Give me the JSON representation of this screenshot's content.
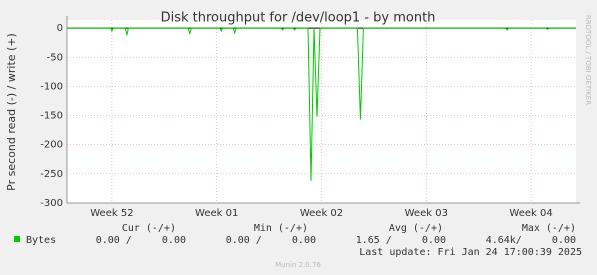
{
  "chart_data": {
    "type": "line",
    "title": "Disk throughput for /dev/loop1 - by month",
    "y_label": "Pr second read (-) / write (+)",
    "x": [
      0,
      2.9,
      3.0,
      3.1,
      3.9,
      4.0,
      4.1,
      8.1,
      8.2,
      8.3,
      10.2,
      10.3,
      10.4,
      11.1,
      11.2,
      11.3,
      14.3,
      14.4,
      14.5,
      15.1,
      15.2,
      15.3,
      16.1,
      16.3,
      16.5,
      16.7,
      16.9,
      19.4,
      19.6,
      19.8,
      29.3,
      29.4,
      29.5,
      32.0,
      32.1,
      32.2,
      34
    ],
    "series": [
      {
        "name": "Bytes",
        "color": "#00cc00",
        "values": [
          0,
          0,
          -5,
          0,
          0,
          -12,
          0,
          0,
          -10,
          0,
          0,
          -5,
          0,
          0,
          -8,
          0,
          0,
          -3,
          0,
          0,
          -3,
          0,
          0,
          -262,
          0,
          -152,
          0,
          0,
          -157,
          0,
          0,
          -3,
          0,
          0,
          -2,
          0,
          0
        ]
      }
    ],
    "xlim": [
      0,
      34
    ],
    "xticks": [
      {
        "value": 3,
        "label": "Week 52"
      },
      {
        "value": 10,
        "label": "Week 01"
      },
      {
        "value": 17,
        "label": "Week 02"
      },
      {
        "value": 24,
        "label": "Week 03"
      },
      {
        "value": 31,
        "label": "Week 04"
      }
    ],
    "ylim": [
      -300,
      14
    ],
    "yticks": [
      -300,
      -250,
      -200,
      -150,
      -100,
      -50,
      0
    ],
    "grid": true,
    "legend": {
      "headers": [
        "Cur (-/+)",
        "Min (-/+)",
        "Avg (-/+)",
        "Max (-/+)"
      ],
      "cells": [
        "0.00 /     0.00",
        "0.00 /     0.00",
        "1.65 /     0.00",
        "4.64k/     0.00"
      ]
    },
    "last_update": "Last update: Fri Jan 24 17:00:39 2025",
    "footer": "Munin 2.0.76",
    "watermark": "RRDTOOL / TOBI OETIKER"
  }
}
